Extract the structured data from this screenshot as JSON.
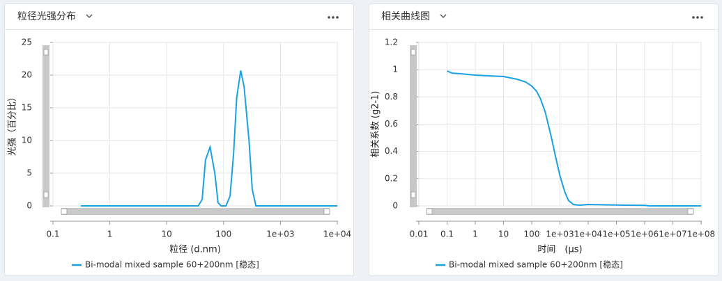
{
  "chart_data": [
    {
      "type": "line",
      "title": "粒径光强分布",
      "x_label": "粒径 (d.nm)",
      "y_label": "光强（百分比）",
      "x": [
        0.31,
        36,
        42,
        48,
        58,
        70,
        80,
        90,
        110,
        130,
        150,
        170,
        200,
        230,
        280,
        320,
        370,
        10000
      ],
      "series": [
        {
          "name": "Bi-modal mixed sample 60+200nm [稳态]",
          "color": "#1ba1e2",
          "values": [
            0,
            0,
            1,
            7,
            9,
            5,
            0.5,
            0,
            0,
            1.5,
            8,
            16.5,
            20.7,
            18.2,
            10,
            2.5,
            0,
            0
          ]
        }
      ],
      "xlim": [
        0.1,
        10000
      ],
      "ylim": [
        0,
        25
      ],
      "log_x": true,
      "grid": true,
      "xticks": [
        0.1,
        1,
        10,
        100,
        {
          "value": 1000,
          "label": "1e+03"
        },
        {
          "value": 10000,
          "label": "1e+04"
        }
      ],
      "yticks": [
        0,
        5,
        10,
        15,
        20,
        25
      ]
    },
    {
      "type": "line",
      "title": "相关曲线图",
      "x_label": "时间　(μs)",
      "y_label": "相关系数 (g2-1)",
      "x": [
        0.1,
        0.15,
        0.3,
        1,
        3,
        10,
        30,
        60,
        100,
        150,
        200,
        300,
        500,
        700,
        1000,
        1500,
        2000,
        3000,
        5000,
        10000,
        30000,
        100000,
        1000000,
        1500000,
        100000000
      ],
      "series": [
        {
          "name": "Bi-modal mixed sample 60+200nm [稳态]",
          "color": "#1ba1e2",
          "values": [
            0.99,
            0.975,
            0.97,
            0.96,
            0.955,
            0.95,
            0.93,
            0.91,
            0.88,
            0.84,
            0.79,
            0.69,
            0.5,
            0.36,
            0.22,
            0.1,
            0.04,
            0.01,
            0.005,
            0.01,
            0.008,
            0.006,
            0.004,
            0,
            0
          ]
        }
      ],
      "xlim": [
        0.01,
        100000000
      ],
      "ylim": [
        0,
        1.2
      ],
      "log_x": true,
      "grid": true,
      "xticks": [
        0.01,
        0.1,
        1,
        10,
        100,
        {
          "value": 1000,
          "label": "1e+03"
        },
        {
          "value": 10000,
          "label": "1e+04"
        },
        {
          "value": 100000,
          "label": "1e+05"
        },
        {
          "value": 1000000,
          "label": "1e+06"
        },
        {
          "value": 10000000,
          "label": "1e+07"
        },
        {
          "value": 100000000,
          "label": "1e+08"
        }
      ],
      "yticks": [
        0,
        0.2,
        0.4,
        0.6,
        0.8,
        1,
        1.2
      ]
    }
  ]
}
